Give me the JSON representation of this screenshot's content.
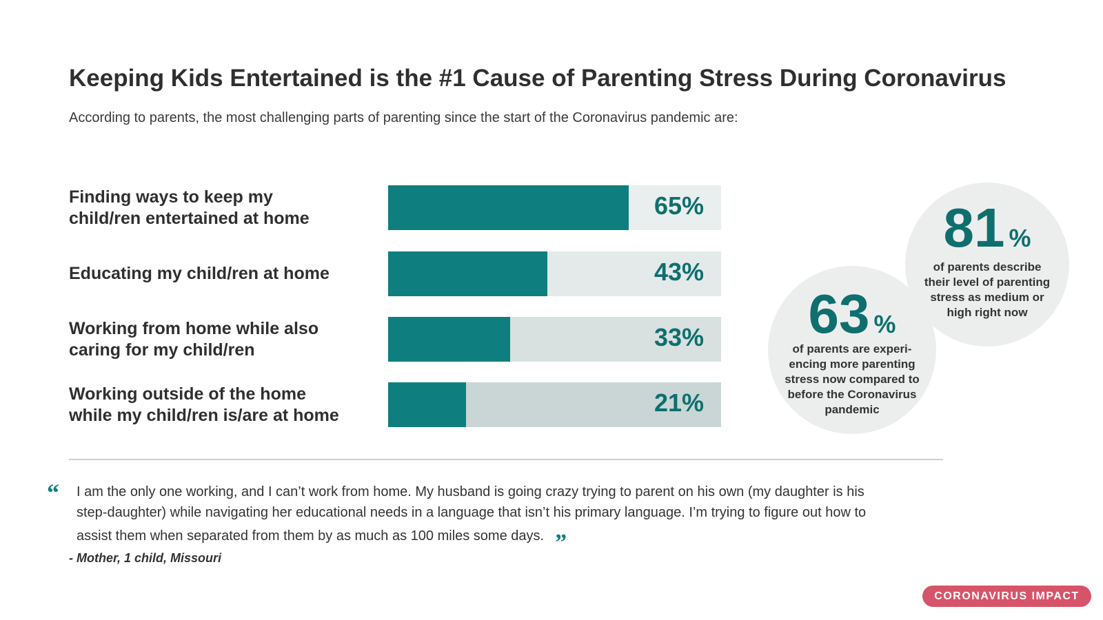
{
  "chart_data": {
    "type": "bar",
    "orientation": "horizontal",
    "title": "Keeping Kids Entertained is the #1 Cause of Parenting Stress During Coronavirus",
    "subtitle": "According to parents, the most challenging parts of parenting since the start of the Coronavirus pandemic are:",
    "categories": [
      "Finding ways to keep my\nchild/ren entertained at home",
      "Educating my child/ren at home",
      "Working from home while also\ncaring for my child/ren",
      "Working outside of the home\nwhile my child/ren is/are at home"
    ],
    "values": [
      65,
      43,
      33,
      21
    ],
    "value_labels": [
      "65%",
      "43%",
      "33%",
      "21%"
    ],
    "color": "#0e7f7e",
    "track_colors": [
      "#e9efee",
      "#e3eae9",
      "#d8e1e0",
      "#c9d6d5"
    ],
    "xlim": [
      0,
      90
    ]
  },
  "stats": [
    {
      "value": 81,
      "unit": "%",
      "text": "of parents describe\ntheir level of parenting\nstress as medium or\nhigh right now"
    },
    {
      "value": 63,
      "unit": "%",
      "text": "of parents are experi-\nencing more parenting\nstress now compared to\nbefore the Coronavirus\npandemic"
    }
  ],
  "quote": {
    "open_mark": "“",
    "close_mark": "”",
    "text": "I am the only one working, and I can’t work from home. My husband is going crazy trying to parent on his own (my daughter is his\nstep-daughter) while navigating her educational needs in a language that isn’t his primary language. I’m trying to figure out how to\nassist them when separated from them by as much as 100 miles some days.",
    "attribution": "- Mother, 1 child, Missouri"
  },
  "badge": "CORONAVIRUS IMPACT"
}
